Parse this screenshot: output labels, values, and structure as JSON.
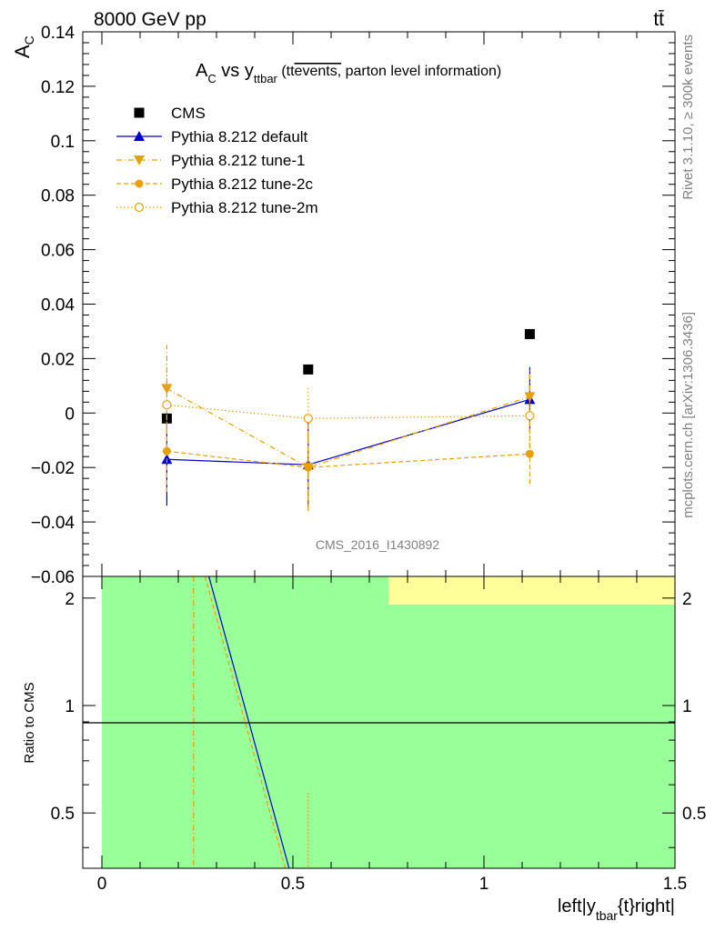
{
  "header": {
    "left": "8000 GeV pp",
    "right": "tt̄"
  },
  "side_texts": {
    "rivet": "Rivet 3.1.10, ≥ 300k events",
    "mcplots": "mcplots.cern.ch [arXiv:1306.3436]"
  },
  "watermark": "CMS_2016_I1430892",
  "colors": {
    "cms": "#000000",
    "default": "#0000cc",
    "tunes": "#e8a000",
    "band_green": "#99ff99",
    "band_yellow": "#ffff99"
  },
  "chart_data": [
    {
      "type": "scatter",
      "title": "A_C vs y_ttbar (tt̄events, parton level information)",
      "title_parts": {
        "main": "A",
        "main_sub": "C",
        "vs": " vs y",
        "vs_sub": "ttbar",
        "paren_open": " (tt",
        "overline": "events,",
        "paren_rest": " parton level information)"
      },
      "ylabel": "A",
      "ylabel_sub": "C",
      "ylim": [
        -0.06,
        0.14
      ],
      "xlim": [
        -0.05,
        1.5
      ],
      "y_ticks": [
        "0.14",
        "0.12",
        "0.1",
        "0.08",
        "0.06",
        "0.04",
        "0.02",
        "0",
        "−0.02",
        "−0.04",
        "−0.06"
      ],
      "y_tick_values": [
        0.14,
        0.12,
        0.1,
        0.08,
        0.06,
        0.04,
        0.02,
        0,
        -0.02,
        -0.04,
        -0.06
      ],
      "legend_position": "top-left",
      "series": [
        {
          "name": "CMS",
          "marker": "square",
          "line": "none",
          "x": [
            0.17,
            0.54,
            1.12
          ],
          "y": [
            -0.002,
            0.016,
            0.029
          ],
          "err": [
            0,
            0,
            0
          ]
        },
        {
          "name": "Pythia 8.212 default",
          "marker": "triangle-up",
          "line": "solid",
          "x": [
            0.17,
            0.54,
            1.12
          ],
          "y": [
            -0.017,
            -0.019,
            0.005
          ],
          "err": [
            0.017,
            0.016,
            0.012
          ]
        },
        {
          "name": "Pythia 8.212 tune-1",
          "marker": "triangle-down",
          "line": "dashdot",
          "x": [
            0.17,
            0.54,
            1.12
          ],
          "y": [
            0.009,
            -0.02,
            0.006
          ],
          "err": [
            0.016,
            0.016,
            0.011
          ]
        },
        {
          "name": "Pythia 8.212 tune-2c",
          "marker": "circle",
          "line": "dashed",
          "x": [
            0.17,
            0.54,
            1.12
          ],
          "y": [
            -0.014,
            -0.02,
            -0.015
          ],
          "err": [
            0.015,
            0.015,
            0.011
          ]
        },
        {
          "name": "Pythia 8.212 tune-2m",
          "marker": "circle-open",
          "line": "dotted",
          "x": [
            0.17,
            0.54,
            1.12
          ],
          "y": [
            0.003,
            -0.002,
            -0.001
          ],
          "err": [
            0.016,
            0.012,
            0.012
          ]
        }
      ]
    },
    {
      "type": "line",
      "ylabel": "Ratio to CMS",
      "xlabel": "left|y",
      "xlabel_sub": "tbar",
      "xlabel_rest": "{t}right|",
      "xlim": [
        -0.05,
        1.5
      ],
      "ylim": [
        0.35,
        2.3
      ],
      "x_ticks": [
        "0",
        "0.5",
        "1",
        "1.5"
      ],
      "x_tick_values": [
        0,
        0.5,
        1,
        1.5
      ],
      "y_ticks": [
        "2",
        "1",
        "0.5"
      ],
      "y_tick_values": [
        2,
        1,
        0.5
      ],
      "reference_line": 1,
      "bands": [
        {
          "x": [
            0,
            0.75
          ],
          "y": [
            0.35,
            2.3
          ],
          "color": "green"
        },
        {
          "x": [
            0.75,
            1.5
          ],
          "y": [
            0.35,
            1.92
          ],
          "color": "green"
        },
        {
          "x": [
            0.75,
            1.5
          ],
          "y": [
            1.92,
            2.3
          ],
          "color": "yellow"
        }
      ],
      "series": [
        {
          "name": "Pythia 8.212 default",
          "x": [
            0.28,
            0.49
          ],
          "y": [
            2.3,
            0.35
          ]
        },
        {
          "name": "Pythia 8.212 tune-2c",
          "x": [
            0.27,
            0.48
          ],
          "y": [
            2.3,
            0.35
          ]
        },
        {
          "name": "Pythia 8.212 tune-1",
          "x": [
            0.24,
            0.24
          ],
          "y": [
            2.3,
            0.35
          ]
        },
        {
          "name": "Pythia 8.212 tune-2m",
          "x": [
            0.54,
            0.54
          ],
          "y": [
            0.57,
            0.35
          ]
        }
      ]
    }
  ]
}
